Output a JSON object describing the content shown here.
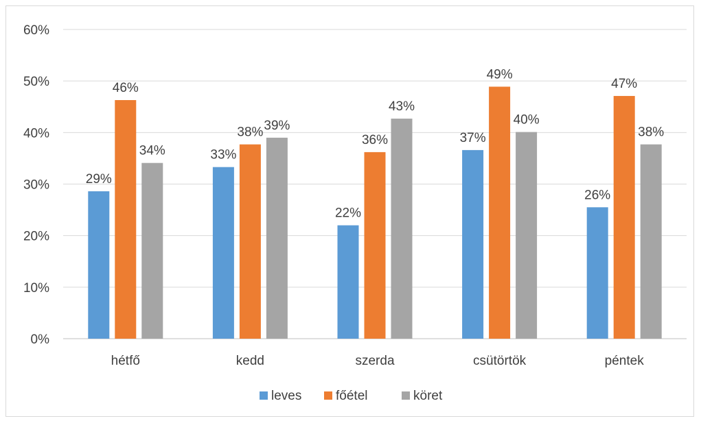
{
  "chart_data": {
    "type": "bar",
    "categories": [
      "hétfő",
      "kedd",
      "szerda",
      "csütörtök",
      "péntek"
    ],
    "series": [
      {
        "name": "leves",
        "color": "#5b9bd5",
        "values": [
          29,
          33,
          22,
          37,
          26
        ],
        "labels": [
          "29%",
          "33%",
          "22%",
          "37%",
          "26%"
        ],
        "plot_values": [
          28.6,
          33.3,
          22.0,
          36.6,
          25.5
        ]
      },
      {
        "name": "főétel",
        "color": "#ed7d31",
        "values": [
          46,
          38,
          36,
          49,
          47
        ],
        "labels": [
          "46%",
          "38%",
          "36%",
          "49%",
          "47%"
        ],
        "plot_values": [
          46.3,
          37.7,
          36.2,
          48.9,
          47.1
        ]
      },
      {
        "name": "köret",
        "color": "#a5a5a5",
        "values": [
          34,
          39,
          43,
          40,
          38
        ],
        "labels": [
          "34%",
          "39%",
          "43%",
          "40%",
          "38%"
        ],
        "plot_values": [
          34.1,
          39.0,
          42.7,
          40.1,
          37.7
        ]
      }
    ],
    "y_ticks": [
      "0%",
      "10%",
      "20%",
      "30%",
      "40%",
      "50%",
      "60%"
    ],
    "ylim": [
      0,
      60
    ],
    "grid": true,
    "legend_position": "bottom"
  }
}
